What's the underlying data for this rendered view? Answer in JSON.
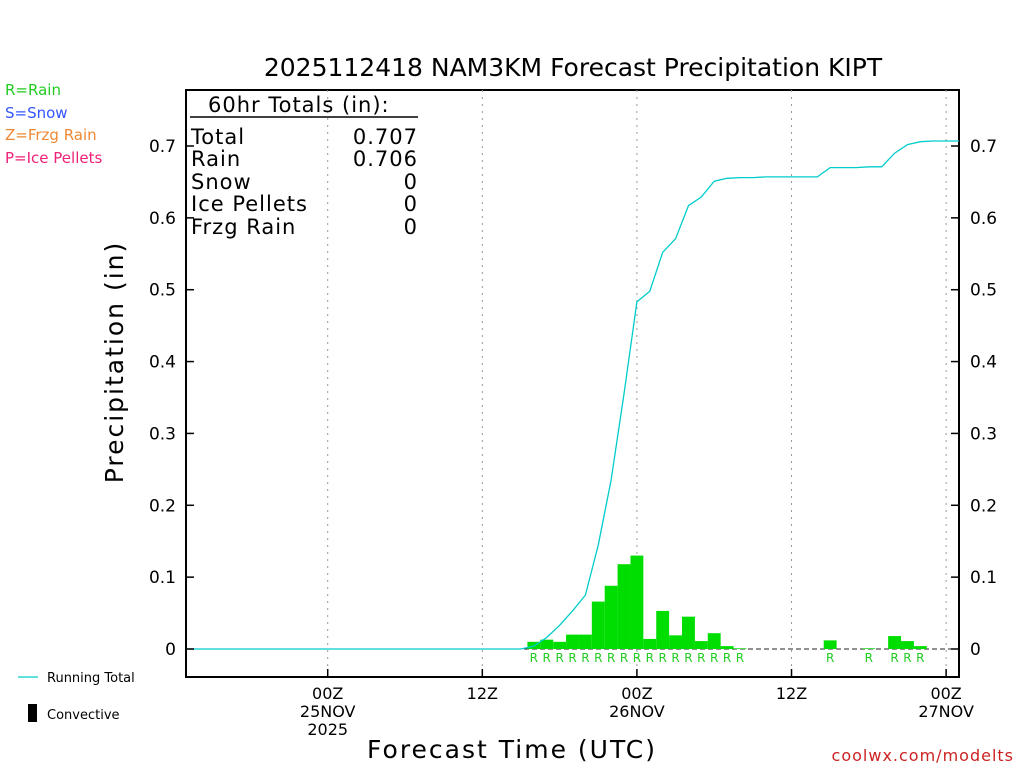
{
  "chart_data": {
    "type": "bar",
    "title": "2025112418 NAM3KM Forecast Precipitation KIPT",
    "xlabel": "Forecast Time (UTC)",
    "ylabel": "Precipitation (in)",
    "ylim": [
      0,
      0.78
    ],
    "y_ticks": [
      0,
      0.1,
      0.2,
      0.3,
      0.4,
      0.5,
      0.6,
      0.7
    ],
    "y_tick_labels": [
      "0",
      "0.1",
      "0.2",
      "0.3",
      "0.4",
      "0.5",
      "0.6",
      "0.7"
    ],
    "x_range_hours": [
      -5,
      55
    ],
    "x_ticks": [
      {
        "hour": 6,
        "lines": [
          "00Z",
          "25NOV",
          "2025"
        ]
      },
      {
        "hour": 18,
        "lines": [
          "12Z"
        ]
      },
      {
        "hour": 30,
        "lines": [
          "00Z",
          "26NOV"
        ]
      },
      {
        "hour": 42,
        "lines": [
          "12Z"
        ]
      },
      {
        "hour": 54,
        "lines": [
          "00Z",
          "27NOV"
        ]
      }
    ],
    "grid": "vertical dotted at tick hours",
    "series": [
      {
        "name": "Hourly Rain",
        "color": "#00dd00",
        "points": [
          {
            "hour": 22,
            "value": 0.01,
            "type": "R"
          },
          {
            "hour": 23,
            "value": 0.013,
            "type": "R"
          },
          {
            "hour": 24,
            "value": 0.01,
            "type": "R"
          },
          {
            "hour": 25,
            "value": 0.02,
            "type": "R"
          },
          {
            "hour": 26,
            "value": 0.02,
            "type": "R"
          },
          {
            "hour": 27,
            "value": 0.066,
            "type": "R"
          },
          {
            "hour": 28,
            "value": 0.088,
            "type": "R"
          },
          {
            "hour": 29,
            "value": 0.118,
            "type": "R"
          },
          {
            "hour": 30,
            "value": 0.13,
            "type": "R"
          },
          {
            "hour": 31,
            "value": 0.014,
            "type": "R"
          },
          {
            "hour": 32,
            "value": 0.053,
            "type": "R"
          },
          {
            "hour": 33,
            "value": 0.019,
            "type": "R"
          },
          {
            "hour": 34,
            "value": 0.045,
            "type": "R"
          },
          {
            "hour": 35,
            "value": 0.011,
            "type": "R"
          },
          {
            "hour": 36,
            "value": 0.022,
            "type": "R"
          },
          {
            "hour": 37,
            "value": 0.004,
            "type": "R"
          },
          {
            "hour": 38,
            "value": 0.001,
            "type": "R"
          },
          {
            "hour": 45,
            "value": 0.012,
            "type": "R"
          },
          {
            "hour": 48,
            "value": 0.001,
            "type": "R"
          },
          {
            "hour": 50,
            "value": 0.018,
            "type": "R"
          },
          {
            "hour": 51,
            "value": 0.011,
            "type": "R"
          },
          {
            "hour": 52,
            "value": 0.004,
            "type": "R"
          }
        ]
      },
      {
        "name": "Running Total",
        "color": "#00cccc",
        "x": [
          -5,
          21,
          22,
          23,
          24,
          25,
          26,
          27,
          28,
          29,
          30,
          31,
          32,
          33,
          34,
          35,
          36,
          37,
          38,
          39,
          40,
          41,
          42,
          43,
          44,
          45,
          46,
          47,
          48,
          49,
          50,
          51,
          52,
          53,
          54,
          55
        ],
        "y": [
          0,
          0,
          0.004,
          0.016,
          0.033,
          0.053,
          0.075,
          0.145,
          0.235,
          0.355,
          0.483,
          0.498,
          0.552,
          0.571,
          0.617,
          0.629,
          0.651,
          0.655,
          0.656,
          0.656,
          0.657,
          0.657,
          0.657,
          0.657,
          0.657,
          0.67,
          0.67,
          0.67,
          0.671,
          0.671,
          0.69,
          0.702,
          0.706,
          0.707,
          0.707,
          0.707
        ]
      }
    ],
    "totals_box": {
      "heading": "60hr Totals (in):",
      "rows": [
        {
          "label": "Total",
          "value": "0.707"
        },
        {
          "label": "Rain",
          "value": "0.706"
        },
        {
          "label": "Snow",
          "value": "0"
        },
        {
          "label": "Ice Pellets",
          "value": "0"
        },
        {
          "label": "Frzg Rain",
          "value": "0"
        }
      ]
    },
    "type_legend": [
      {
        "text": "R=Rain",
        "color": "#22cc22"
      },
      {
        "text": "S=Snow",
        "color": "#3355ff"
      },
      {
        "text": "Z=Frzg Rain",
        "color": "#ee8833"
      },
      {
        "text": "P=Ice Pellets",
        "color": "#ee2277"
      }
    ],
    "bottom_legend": {
      "running_total_label": "Running Total",
      "convective_label": "Convective"
    },
    "credit": "coolwx.com/modelts"
  }
}
